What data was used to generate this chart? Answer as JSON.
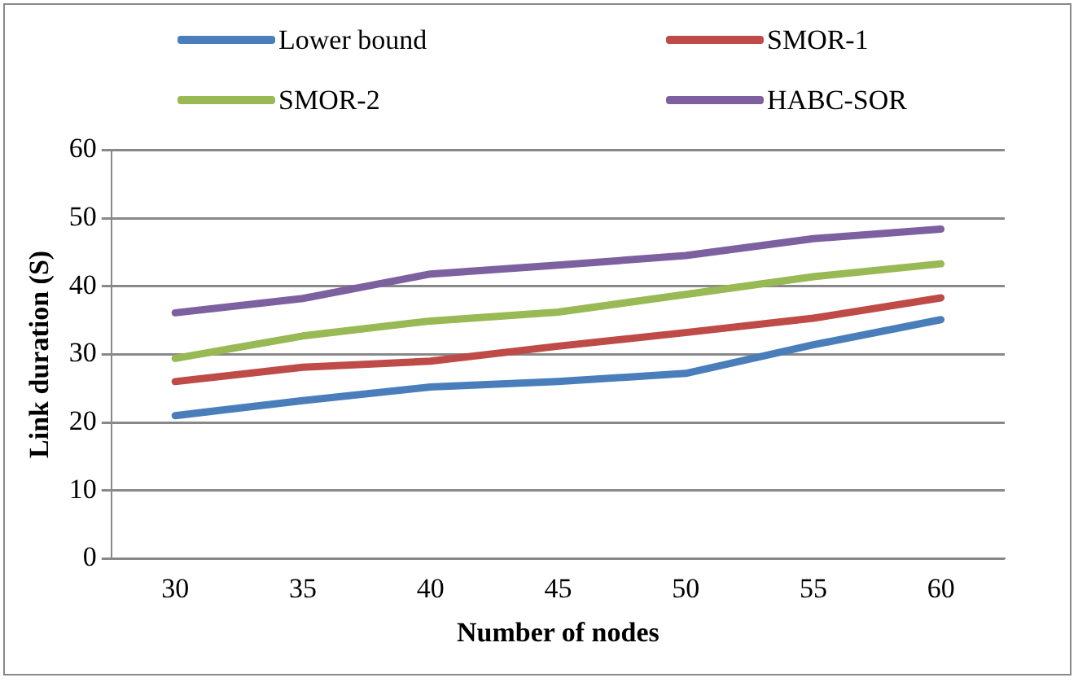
{
  "chart_data": {
    "type": "line",
    "xlabel": "Number of nodes",
    "ylabel": "Link duration (S)",
    "categories": [
      "30",
      "35",
      "40",
      "45",
      "50",
      "55",
      "60"
    ],
    "series": [
      {
        "name": "Lower bound",
        "color": "#4a7ebb",
        "values": [
          21,
          23.2,
          25.2,
          26,
          27.2,
          31.4,
          35.1
        ]
      },
      {
        "name": "SMOR-1",
        "color": "#be4b48",
        "values": [
          26,
          28.1,
          29,
          31.2,
          33.2,
          35.3,
          38.3
        ]
      },
      {
        "name": "SMOR-2",
        "color": "#98b954",
        "values": [
          29.4,
          32.7,
          34.9,
          36.2,
          38.8,
          41.4,
          43.3
        ]
      },
      {
        "name": "HABC-SOR",
        "color": "#7d60a0",
        "values": [
          36.1,
          38.2,
          41.8,
          43.1,
          44.5,
          47,
          48.4
        ]
      }
    ],
    "ylim": [
      0,
      60
    ],
    "yticks": [
      0,
      10,
      20,
      30,
      40,
      50,
      60
    ],
    "grid": "y",
    "legend": "top",
    "marker": "none",
    "line_style": "solid"
  }
}
